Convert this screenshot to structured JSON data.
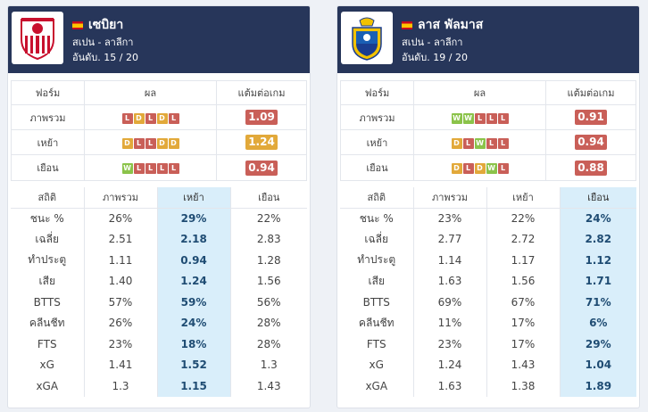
{
  "form_headers": [
    "ฟอร์ม",
    "ผล",
    "แต้มต่อเกม"
  ],
  "stats_headers": [
    "สถิติ",
    "ภาพรวม",
    "เหย้า",
    "เยือน"
  ],
  "teams": [
    {
      "name": "เซบิยา",
      "league": "สเปน - ลาลีกา",
      "rank": "อันดับ. 15 / 20",
      "logo_icon": "sevilla-crest-icon",
      "highlight_col": 2,
      "form": [
        {
          "label": "ภาพรวม",
          "results": [
            "L",
            "D",
            "L",
            "D",
            "L"
          ],
          "ppg": "1.09",
          "ppg_color": "#c95f58"
        },
        {
          "label": "เหย้า",
          "results": [
            "D",
            "L",
            "L",
            "D",
            "D"
          ],
          "ppg": "1.24",
          "ppg_color": "#e2a93a"
        },
        {
          "label": "เยือน",
          "results": [
            "W",
            "L",
            "L",
            "L",
            "L"
          ],
          "ppg": "0.94",
          "ppg_color": "#c95f58"
        }
      ],
      "stats": [
        {
          "label": "ชนะ %",
          "values": [
            "26%",
            "29%",
            "22%"
          ]
        },
        {
          "label": "เฉลี่ย",
          "values": [
            "2.51",
            "2.18",
            "2.83"
          ]
        },
        {
          "label": "ทำประตู",
          "values": [
            "1.11",
            "0.94",
            "1.28"
          ]
        },
        {
          "label": "เสีย",
          "values": [
            "1.40",
            "1.24",
            "1.56"
          ]
        },
        {
          "label": "BTTS",
          "values": [
            "57%",
            "59%",
            "56%"
          ]
        },
        {
          "label": "คลีนชีท",
          "values": [
            "26%",
            "24%",
            "28%"
          ]
        },
        {
          "label": "FTS",
          "values": [
            "23%",
            "18%",
            "28%"
          ]
        },
        {
          "label": "xG",
          "values": [
            "1.41",
            "1.52",
            "1.3"
          ]
        },
        {
          "label": "xGA",
          "values": [
            "1.3",
            "1.15",
            "1.43"
          ]
        }
      ]
    },
    {
      "name": "ลาส พัลมาส",
      "league": "สเปน - ลาลีกา",
      "rank": "อันดับ. 19 / 20",
      "logo_icon": "las-palmas-crest-icon",
      "highlight_col": 3,
      "form": [
        {
          "label": "ภาพรวม",
          "results": [
            "W",
            "W",
            "L",
            "L",
            "L"
          ],
          "ppg": "0.91",
          "ppg_color": "#c95f58"
        },
        {
          "label": "เหย้า",
          "results": [
            "D",
            "L",
            "W",
            "L",
            "L"
          ],
          "ppg": "0.94",
          "ppg_color": "#c95f58"
        },
        {
          "label": "เยือน",
          "results": [
            "D",
            "L",
            "D",
            "W",
            "L"
          ],
          "ppg": "0.88",
          "ppg_color": "#c95f58"
        }
      ],
      "stats": [
        {
          "label": "ชนะ %",
          "values": [
            "23%",
            "22%",
            "24%"
          ]
        },
        {
          "label": "เฉลี่ย",
          "values": [
            "2.77",
            "2.72",
            "2.82"
          ]
        },
        {
          "label": "ทำประตู",
          "values": [
            "1.14",
            "1.17",
            "1.12"
          ]
        },
        {
          "label": "เสีย",
          "values": [
            "1.63",
            "1.56",
            "1.71"
          ]
        },
        {
          "label": "BTTS",
          "values": [
            "69%",
            "67%",
            "71%"
          ]
        },
        {
          "label": "คลีนชีท",
          "values": [
            "11%",
            "17%",
            "6%"
          ]
        },
        {
          "label": "FTS",
          "values": [
            "23%",
            "17%",
            "29%"
          ]
        },
        {
          "label": "xG",
          "values": [
            "1.24",
            "1.43",
            "1.04"
          ]
        },
        {
          "label": "xGA",
          "values": [
            "1.63",
            "1.38",
            "1.89"
          ]
        }
      ]
    }
  ]
}
